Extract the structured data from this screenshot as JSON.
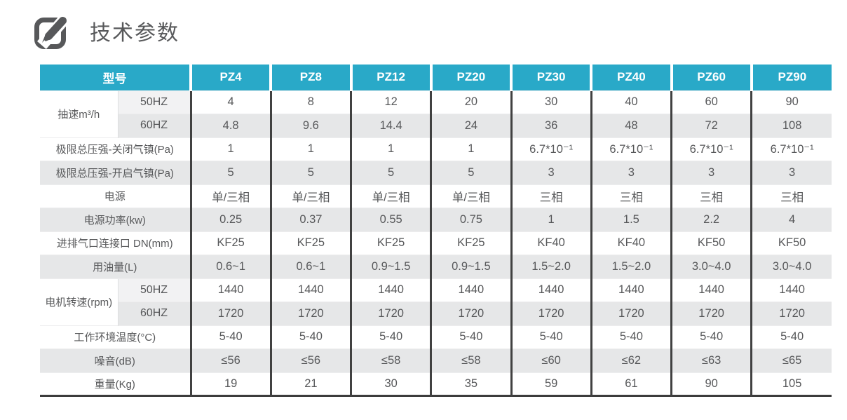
{
  "page": {
    "title": "技术参数",
    "title_icon": "edit-pencil-icon"
  },
  "colors": {
    "header_bg": "#29a9c8",
    "header_text": "#ffffff",
    "row_alt_bg": "#e6e7e8",
    "row_bg": "#ffffff",
    "column_divider": "#414141",
    "body_text": "#57585a",
    "title_text": "#57585a",
    "table_bottom_border": "#3c3c3c"
  },
  "table": {
    "corner_label": "型号",
    "columns": [
      "PZ4",
      "PZ8",
      "PZ12",
      "PZ20",
      "PZ30",
      "PZ40",
      "PZ60",
      "PZ90"
    ],
    "rows": [
      {
        "group": "抽速m³/h",
        "sublabel": "50HZ",
        "values": [
          "4",
          "8",
          "12",
          "20",
          "30",
          "40",
          "60",
          "90"
        ]
      },
      {
        "sublabel": "60HZ",
        "values": [
          "4.8",
          "9.6",
          "14.4",
          "24",
          "36",
          "48",
          "72",
          "108"
        ]
      },
      {
        "label": "极限总压强-关闭气镇(Pa)",
        "values": [
          "1",
          "1",
          "1",
          "1",
          "6.7*10⁻¹",
          "6.7*10⁻¹",
          "6.7*10⁻¹",
          "6.7*10⁻¹"
        ]
      },
      {
        "label": "极限总压强-开启气镇(Pa)",
        "values": [
          "5",
          "5",
          "5",
          "5",
          "3",
          "3",
          "3",
          "3"
        ]
      },
      {
        "label": "电源",
        "values": [
          "单/三相",
          "单/三相",
          "单/三相",
          "单/三相",
          "三相",
          "三相",
          "三相",
          "三相"
        ]
      },
      {
        "label": "电源功率(kw)",
        "values": [
          "0.25",
          "0.37",
          "0.55",
          "0.75",
          "1",
          "1.5",
          "2.2",
          "4"
        ]
      },
      {
        "label": "进排气口连接口 DN(mm)",
        "values": [
          "KF25",
          "KF25",
          "KF25",
          "KF25",
          "KF40",
          "KF40",
          "KF50",
          "KF50"
        ]
      },
      {
        "label": "用油量(L)",
        "values": [
          "0.6~1",
          "0.6~1",
          "0.9~1.5",
          "0.9~1.5",
          "1.5~2.0",
          "1.5~2.0",
          "3.0~4.0",
          "3.0~4.0"
        ]
      },
      {
        "group": "电机转速(rpm)",
        "sublabel": "50HZ",
        "values": [
          "1440",
          "1440",
          "1440",
          "1440",
          "1440",
          "1440",
          "1440",
          "1440"
        ]
      },
      {
        "sublabel": "60HZ",
        "values": [
          "1720",
          "1720",
          "1720",
          "1720",
          "1720",
          "1720",
          "1720",
          "1720"
        ]
      },
      {
        "label": "工作环境温度(°C)",
        "values": [
          "5-40",
          "5-40",
          "5-40",
          "5-40",
          "5-40",
          "5-40",
          "5-40",
          "5-40"
        ]
      },
      {
        "label": "噪音(dB)",
        "values": [
          "≤56",
          "≤56",
          "≤58",
          "≤58",
          "≤60",
          "≤62",
          "≤63",
          "≤65"
        ]
      },
      {
        "label": "重量(Kg)",
        "values": [
          "19",
          "21",
          "30",
          "35",
          "59",
          "61",
          "90",
          "105"
        ]
      }
    ]
  }
}
